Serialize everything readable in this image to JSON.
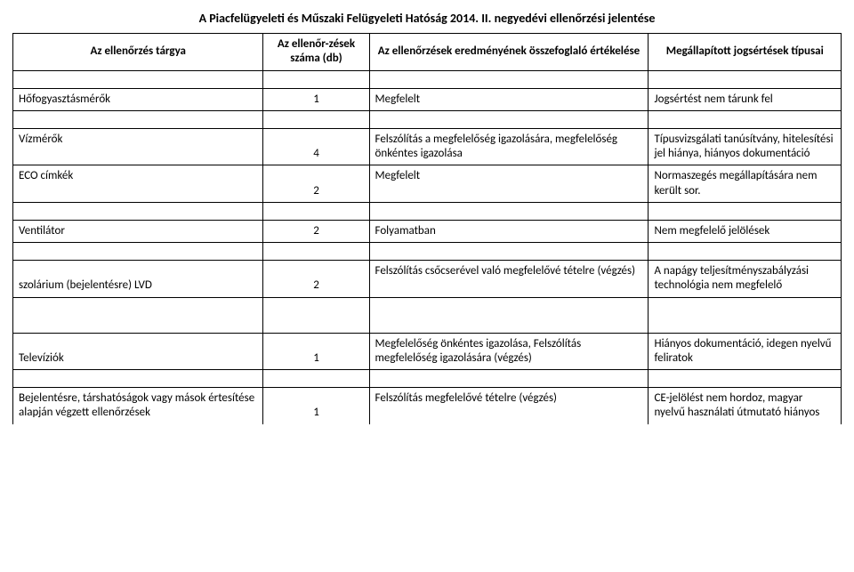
{
  "title": "A Piacfelügyeleti és Műszaki Felügyeleti Hatóság 2014. II. negyedévi ellenőrzési jelentése",
  "headers": {
    "col1": "Az ellenőrzés tárgya",
    "col2": "Az ellenőr-zések száma (db)",
    "col3": "Az ellenőrzések eredményének összefoglaló értékelése",
    "col4": "Megállapított jogsértések típusai"
  },
  "rows": [
    {
      "subject": "Hőfogyasztásmérők",
      "count": "1",
      "result": "Megfelelt",
      "violation": "Jogsértést nem tárunk fel"
    },
    {
      "subject": "Vízmérők",
      "count": "4",
      "result": "Felszólítás a megfelelőség igazolására, megfelelőség önkéntes igazolása",
      "violation": "Típusvizsgálati tanúsítvány, hitelesítési jel hiánya, hiányos dokumentáció"
    },
    {
      "subject": "ECO címkék",
      "count": "2",
      "result": "Megfelelt",
      "violation": "Normaszegés megállapítására nem került sor."
    },
    {
      "subject": "Ventilátor",
      "count": "2",
      "result": "Folyamatban",
      "violation": "Nem megfelelő jelölések"
    },
    {
      "subject": "szolárium (bejelentésre) LVD",
      "count": "2",
      "result": "Felszólítás csőcserével való megfelelővé tételre (végzés)",
      "violation": "A napágy teljesítményszabályzási technológia nem megfelelő"
    },
    {
      "subject": "Televíziók",
      "count": "1",
      "result": "Megfelelőség önkéntes igazolása, Felszólítás megfelelőség igazolására (végzés)",
      "violation": "Hiányos dokumentáció, idegen nyelvű feliratok"
    },
    {
      "subject": "Bejelentésre, társhatóságok vagy mások értesítése alapján végzett ellenőrzések",
      "count": "1",
      "result": "Felszólítás megfelelővé tételre (végzés)",
      "violation": " CE-jelölést nem hordoz, magyar nyelvű használati útmutató hiányos"
    }
  ]
}
